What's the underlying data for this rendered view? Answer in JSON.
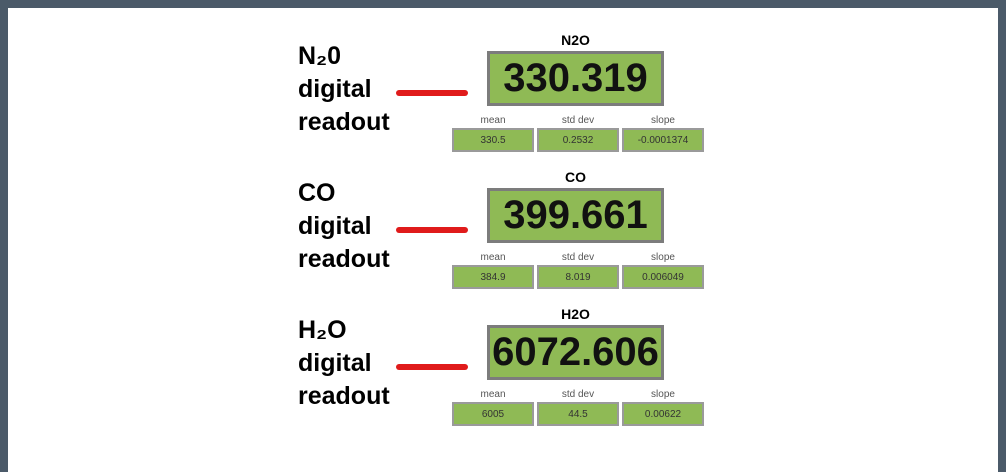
{
  "panels": [
    {
      "label": [
        "N₂0",
        "digital",
        "readout"
      ],
      "title": "N2O",
      "reading": 330.319,
      "stats": [
        {
          "name": "mean",
          "value": 330.5
        },
        {
          "name": "std dev",
          "value": 0.2532
        },
        {
          "name": "slope",
          "value": -0.0001374
        }
      ]
    },
    {
      "label": [
        "CO",
        "digital",
        "readout"
      ],
      "title": "CO",
      "reading": 399.661,
      "stats": [
        {
          "name": "mean",
          "value": 384.9
        },
        {
          "name": "std dev",
          "value": 8.019
        },
        {
          "name": "slope",
          "value": 0.006049
        }
      ]
    },
    {
      "label": [
        "H₂O",
        "digital",
        "readout"
      ],
      "title": "H2O",
      "reading": 6072.606,
      "stats": [
        {
          "name": "mean",
          "value": 6005
        },
        {
          "name": "std dev",
          "value": 44.5
        },
        {
          "name": "slope",
          "value": 0.00622
        }
      ]
    }
  ]
}
